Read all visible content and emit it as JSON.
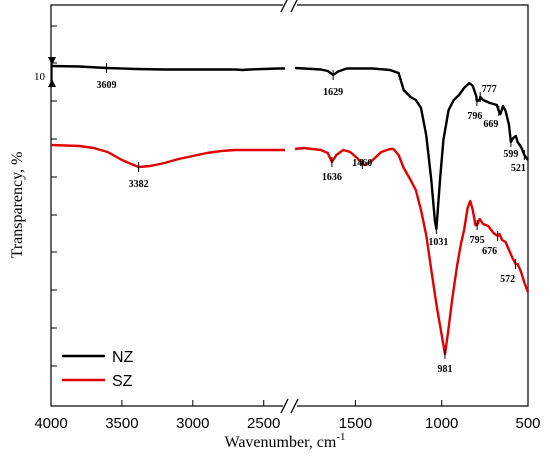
{
  "chart_data": {
    "type": "line",
    "xlabel": "Wavenumber, cm",
    "xlabel_sup": "-1",
    "ylabel": "Transparency, %",
    "x_ticks": [
      "4000",
      "3500",
      "3000",
      "2500",
      "1500",
      "1000",
      "500"
    ],
    "x_segments": [
      [
        4000,
        2350
      ],
      [
        1850,
        500
      ]
    ],
    "axis_break": true,
    "x_reversed": true,
    "scale_bar_label": "10",
    "legend_position": "bottom-left",
    "series": [
      {
        "name": "NZ",
        "color": "#000000",
        "points": [
          [
            4000,
            66
          ],
          [
            3800,
            66.5
          ],
          [
            3609,
            68
          ],
          [
            3400,
            69
          ],
          [
            3200,
            69.5
          ],
          [
            3000,
            69.5
          ],
          [
            2800,
            69.5
          ],
          [
            2700,
            69.5
          ],
          [
            2650,
            70
          ],
          [
            2600,
            69.5
          ],
          [
            2500,
            69
          ],
          [
            2400,
            68.5
          ],
          [
            2350,
            68.5
          ],
          [
            1850,
            68
          ],
          [
            1800,
            68.5
          ],
          [
            1700,
            69.5
          ],
          [
            1660,
            71
          ],
          [
            1629,
            75
          ],
          [
            1600,
            71.5
          ],
          [
            1550,
            68.5
          ],
          [
            1400,
            68.5
          ],
          [
            1300,
            70
          ],
          [
            1250,
            73
          ],
          [
            1220,
            90
          ],
          [
            1180,
            97
          ],
          [
            1150,
            100
          ],
          [
            1120,
            108
          ],
          [
            1090,
            135
          ],
          [
            1060,
            180
          ],
          [
            1040,
            220
          ],
          [
            1031,
            229
          ],
          [
            1010,
            180
          ],
          [
            990,
            140
          ],
          [
            960,
            110
          ],
          [
            930,
            100
          ],
          [
            900,
            95
          ],
          [
            870,
            88
          ],
          [
            840,
            83
          ],
          [
            820,
            86
          ],
          [
            800,
            96
          ],
          [
            796,
            101
          ],
          [
            780,
            100
          ],
          [
            777,
            97
          ],
          [
            760,
            100
          ],
          [
            720,
            103
          ],
          [
            700,
            104
          ],
          [
            680,
            105
          ],
          [
            669,
            111
          ],
          [
            660,
            114
          ],
          [
            645,
            106
          ],
          [
            630,
            111
          ],
          [
            610,
            125
          ],
          [
            599,
            142
          ],
          [
            585,
            138
          ],
          [
            570,
            136
          ],
          [
            560,
            142
          ],
          [
            540,
            147
          ],
          [
            521,
            155
          ],
          [
            505,
            159
          ],
          [
            500,
            160
          ]
        ]
      },
      {
        "name": "SZ",
        "color": "#e00000",
        "points": [
          [
            4000,
            145
          ],
          [
            3800,
            146
          ],
          [
            3700,
            148
          ],
          [
            3600,
            152
          ],
          [
            3500,
            160
          ],
          [
            3382,
            167
          ],
          [
            3300,
            166
          ],
          [
            3200,
            163
          ],
          [
            3100,
            159
          ],
          [
            3000,
            156
          ],
          [
            2900,
            153
          ],
          [
            2800,
            151
          ],
          [
            2700,
            150
          ],
          [
            2600,
            150
          ],
          [
            2500,
            150
          ],
          [
            2400,
            150
          ],
          [
            2350,
            150
          ],
          [
            1850,
            149
          ],
          [
            1800,
            148
          ],
          [
            1700,
            150
          ],
          [
            1660,
            153
          ],
          [
            1636,
            162
          ],
          [
            1610,
            155
          ],
          [
            1570,
            150
          ],
          [
            1530,
            152
          ],
          [
            1490,
            158
          ],
          [
            1460,
            164
          ],
          [
            1440,
            165
          ],
          [
            1400,
            160
          ],
          [
            1350,
            152
          ],
          [
            1300,
            149
          ],
          [
            1280,
            149
          ],
          [
            1250,
            155
          ],
          [
            1220,
            168
          ],
          [
            1180,
            180
          ],
          [
            1150,
            190
          ],
          [
            1120,
            210
          ],
          [
            1090,
            235
          ],
          [
            1060,
            270
          ],
          [
            1030,
            305
          ],
          [
            1000,
            335
          ],
          [
            981,
            354
          ],
          [
            965,
            335
          ],
          [
            940,
            300
          ],
          [
            910,
            265
          ],
          [
            890,
            245
          ],
          [
            870,
            230
          ],
          [
            850,
            208
          ],
          [
            835,
            201
          ],
          [
            820,
            210
          ],
          [
            805,
            225
          ],
          [
            795,
            225
          ],
          [
            780,
            219
          ],
          [
            760,
            224
          ],
          [
            730,
            226
          ],
          [
            700,
            233
          ],
          [
            676,
            236
          ],
          [
            665,
            234
          ],
          [
            650,
            240
          ],
          [
            630,
            242
          ],
          [
            610,
            250
          ],
          [
            590,
            258
          ],
          [
            572,
            264
          ],
          [
            560,
            264
          ],
          [
            540,
            272
          ],
          [
            520,
            283
          ],
          [
            505,
            290
          ],
          [
            500,
            292
          ]
        ]
      }
    ],
    "annotations": [
      {
        "label": "3609",
        "series": "NZ",
        "x": 3609,
        "offset": [
          0,
          20
        ]
      },
      {
        "label": "1629",
        "series": "NZ",
        "x": 1629,
        "offset": [
          0,
          20
        ]
      },
      {
        "label": "1031",
        "series": "NZ",
        "x": 1031,
        "offset": [
          2,
          16
        ]
      },
      {
        "label": "796",
        "series": "NZ",
        "x": 796,
        "offset": [
          -2,
          18
        ]
      },
      {
        "label": "777",
        "series": "NZ",
        "x": 777,
        "offset": [
          9,
          -5
        ]
      },
      {
        "label": "669",
        "series": "NZ",
        "x": 669,
        "offset": [
          -8,
          16
        ]
      },
      {
        "label": "599",
        "series": "NZ",
        "x": 599,
        "offset": [
          0,
          15
        ]
      },
      {
        "label": "521",
        "series": "NZ",
        "x": 521,
        "offset": [
          -6,
          16
        ]
      },
      {
        "label": "3382",
        "series": "SZ",
        "x": 3382,
        "offset": [
          0,
          20
        ]
      },
      {
        "label": "1636",
        "series": "SZ",
        "x": 1636,
        "offset": [
          0,
          18
        ]
      },
      {
        "label": "1460",
        "series": "SZ",
        "x": 1460,
        "offset": [
          0,
          2
        ]
      },
      {
        "label": "981",
        "series": "SZ",
        "x": 981,
        "offset": [
          0,
          18
        ]
      },
      {
        "label": "795",
        "series": "SZ",
        "x": 795,
        "offset": [
          0,
          18
        ]
      },
      {
        "label": "676",
        "series": "SZ",
        "x": 676,
        "offset": [
          -8,
          18
        ]
      },
      {
        "label": "572",
        "series": "SZ",
        "x": 572,
        "offset": [
          -8,
          18
        ]
      }
    ]
  }
}
